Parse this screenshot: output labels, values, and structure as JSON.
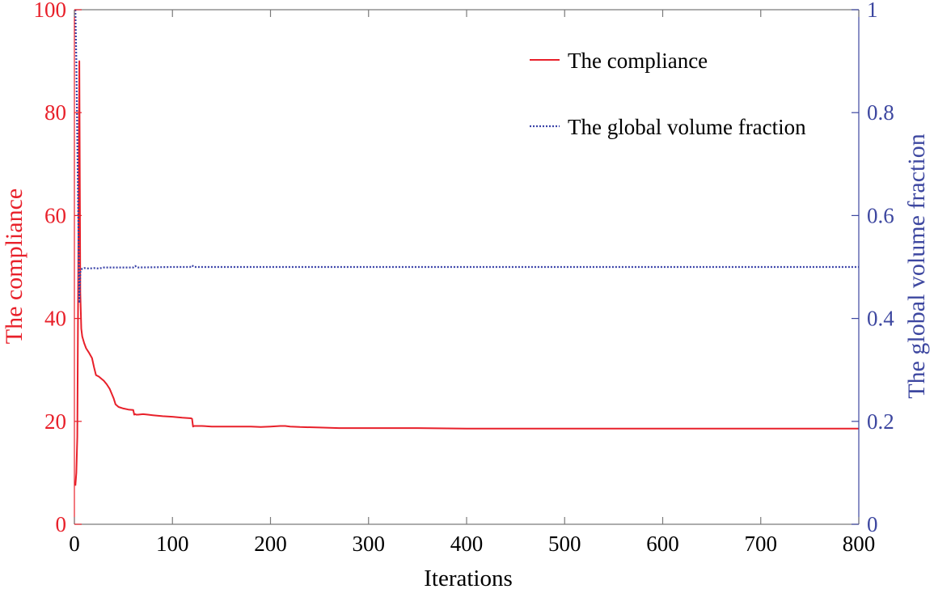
{
  "chart_data": {
    "type": "line",
    "xlabel": "Iterations",
    "ylabel_left": "The compliance",
    "ylabel_right": "The global volume fraction",
    "xlim": [
      0,
      800
    ],
    "ylim_left": [
      0,
      100
    ],
    "ylim_right": [
      0,
      1
    ],
    "xticks": [
      0,
      100,
      200,
      300,
      400,
      500,
      600,
      700,
      800
    ],
    "yticks_left": [
      0,
      20,
      40,
      60,
      80,
      100
    ],
    "yticks_right": [
      0,
      0.2,
      0.4,
      0.6,
      0.8,
      1
    ],
    "ytick_labels_right": [
      "0",
      "0.2",
      "0.4",
      "0.6",
      "0.8",
      "1"
    ],
    "grid": false,
    "legend_position": "top-right",
    "colors": {
      "left_axis": "#e8202a",
      "right_axis": "#3d47a0",
      "compliance": "#e8202a",
      "volume": "#3a43a8",
      "frame": "#7a7a7a"
    },
    "series": [
      {
        "name": "The compliance",
        "axis": "left",
        "style": "solid",
        "x": [
          1,
          2,
          3,
          4,
          5,
          6,
          7,
          8,
          10,
          12,
          15,
          18,
          20,
          22,
          25,
          28,
          30,
          33,
          36,
          40,
          42,
          45,
          50,
          55,
          60,
          61,
          62,
          63,
          65,
          70,
          75,
          80,
          90,
          100,
          110,
          119,
          120,
          121,
          122,
          124,
          130,
          140,
          150,
          160,
          170,
          180,
          190,
          200,
          210,
          215,
          220,
          230,
          250,
          270,
          300,
          350,
          400,
          500,
          600,
          700,
          790,
          800
        ],
        "y": [
          7.5,
          10,
          17,
          50,
          90,
          45,
          38,
          36.5,
          35.2,
          34.2,
          33.3,
          32.3,
          30.5,
          29.0,
          28.7,
          28.2,
          27.9,
          27.2,
          26.3,
          24.5,
          23.3,
          22.8,
          22.5,
          22.3,
          22.2,
          21.3,
          21.4,
          21.3,
          21.3,
          21.4,
          21.3,
          21.2,
          21.0,
          20.9,
          20.7,
          20.6,
          20.5,
          19.0,
          19.1,
          19.1,
          19.1,
          19.0,
          19.0,
          19.0,
          19.0,
          19.0,
          18.9,
          19.0,
          19.1,
          19.1,
          19.0,
          18.9,
          18.8,
          18.7,
          18.7,
          18.7,
          18.6,
          18.6,
          18.6,
          18.6,
          18.6,
          18.6
        ]
      },
      {
        "name": "The global volume fraction",
        "axis": "right",
        "style": "dotted",
        "x": [
          1,
          2,
          3,
          4,
          5,
          6,
          7,
          8,
          10,
          15,
          20,
          25,
          30,
          40,
          60,
          62,
          64,
          100,
          118,
          120,
          122,
          124,
          200,
          400,
          600,
          800
        ],
        "y": [
          1.0,
          0.9,
          0.75,
          0.6,
          0.43,
          0.49,
          0.495,
          0.497,
          0.498,
          0.497,
          0.498,
          0.497,
          0.499,
          0.499,
          0.499,
          0.502,
          0.499,
          0.5,
          0.5,
          0.503,
          0.5,
          0.5,
          0.5,
          0.5,
          0.5,
          0.5
        ]
      }
    ]
  }
}
